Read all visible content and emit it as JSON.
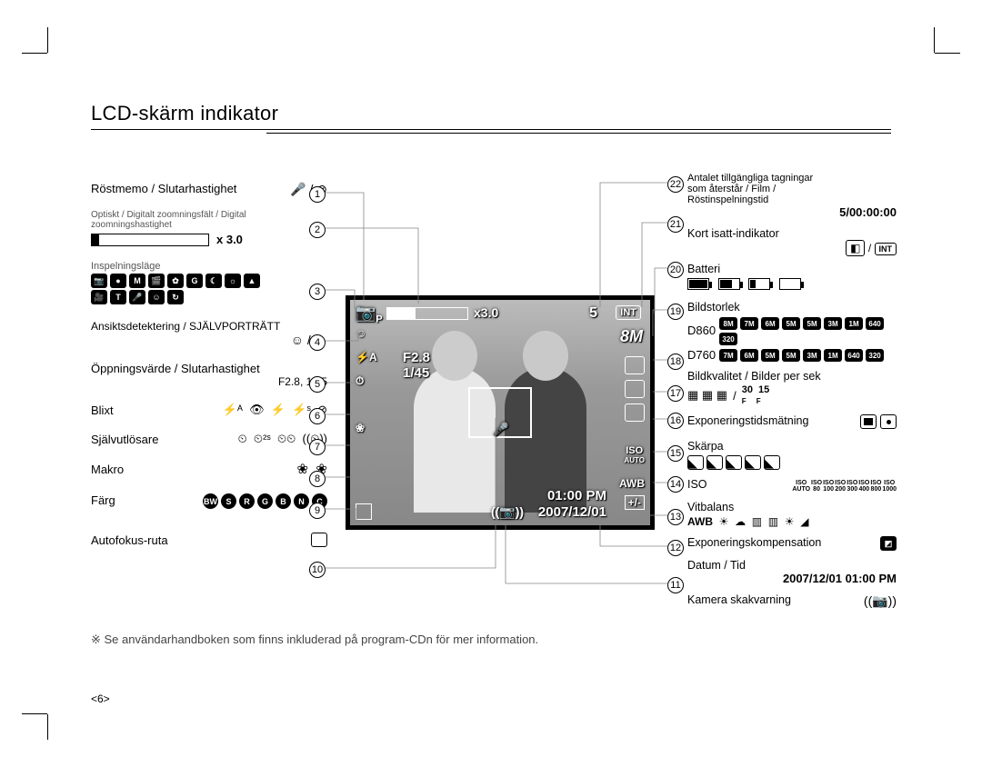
{
  "title": "LCD-skärm indikator",
  "page_number": "<6>",
  "footnote": "※ Se användarhandboken som finns inkluderad på program-CDn för mer information.",
  "lcd": {
    "mode": "P",
    "zoom": "x3.0",
    "shots_remaining": "5",
    "card": "INT",
    "megapixels": "8M",
    "aperture": "F2.8",
    "shutter": "1/45",
    "iso_label": "ISO",
    "iso_mode": "AUTO",
    "awb": "AWB",
    "exp_comp": "+/-",
    "time": "01:00 PM",
    "date": "2007/12/01",
    "flash": "⚡A"
  },
  "left": [
    {
      "n": 1,
      "label": "Röstmemo / Slutarhastighet",
      "icons": "🎤 / ⊘"
    },
    {
      "n": 2,
      "label": "Optiskt / Digitalt zoomningsfält / Digital zoomningshastighet",
      "value": "x 3.0"
    },
    {
      "n": 3,
      "label": "Inspelningsläge"
    },
    {
      "n": 4,
      "label": "Ansiktsdetektering / SJÄLVPORTRÄTT",
      "icons": "☺ / ☺"
    },
    {
      "n": 5,
      "label": "Öppningsvärde / Slutarhastighet",
      "value": "F2.8, 1/45"
    },
    {
      "n": 6,
      "label": "Blixt"
    },
    {
      "n": 7,
      "label": "Självutlösare"
    },
    {
      "n": 8,
      "label": "Makro"
    },
    {
      "n": 9,
      "label": "Färg"
    },
    {
      "n": 10,
      "label": "Autofokus-ruta"
    }
  ],
  "right": [
    {
      "n": 22,
      "label": "Antalet tillgängliga tagningar som återstår / Film / Röstinspelningstid",
      "value": "5/00:00:00"
    },
    {
      "n": 21,
      "label": "Kort isatt-indikator"
    },
    {
      "n": 20,
      "label": "Batteri"
    },
    {
      "n": 19,
      "label": "Bildstorlek",
      "models": [
        "D860",
        "D760"
      ]
    },
    {
      "n": 18,
      "label": "Bildkvalitet / Bilder per sek",
      "value": "30  15"
    },
    {
      "n": 17,
      "label": "Exponeringstidsmätning"
    },
    {
      "n": 16,
      "label": "Skärpa"
    },
    {
      "n": 15,
      "label": "ISO",
      "iso_values": [
        "AUTO",
        "80",
        "100",
        "200",
        "300",
        "400",
        "800",
        "1000"
      ]
    },
    {
      "n": 14,
      "label": "Vitbalans",
      "wb": "AWB"
    },
    {
      "n": 13,
      "label": "Exponeringskompensation"
    },
    {
      "n": 12,
      "label": "Datum / Tid",
      "value": "2007/12/01  01:00 PM"
    },
    {
      "n": 11,
      "label": "Kamera skakvarning"
    }
  ],
  "size_labels": [
    "8M",
    "7M",
    "6M",
    "5M",
    "5M",
    "3M",
    "1M",
    "640",
    "320"
  ],
  "mode_icons": [
    "📷",
    "●",
    "M",
    "🎬",
    "✿",
    "G",
    "☾",
    "☼",
    "▲"
  ],
  "mode_icons2": [
    "🎥",
    "T",
    "🎤",
    "☺",
    "↻"
  ],
  "color_icons": [
    "BW",
    "S",
    "R",
    "G",
    "B",
    "N",
    "C"
  ],
  "left_num_positions": [
    205,
    244,
    312,
    368,
    414,
    449,
    483,
    518,
    553,
    618
  ],
  "right_num_positions": [
    194,
    238,
    288,
    334,
    389,
    424,
    454,
    490,
    524,
    560,
    594,
    635
  ]
}
